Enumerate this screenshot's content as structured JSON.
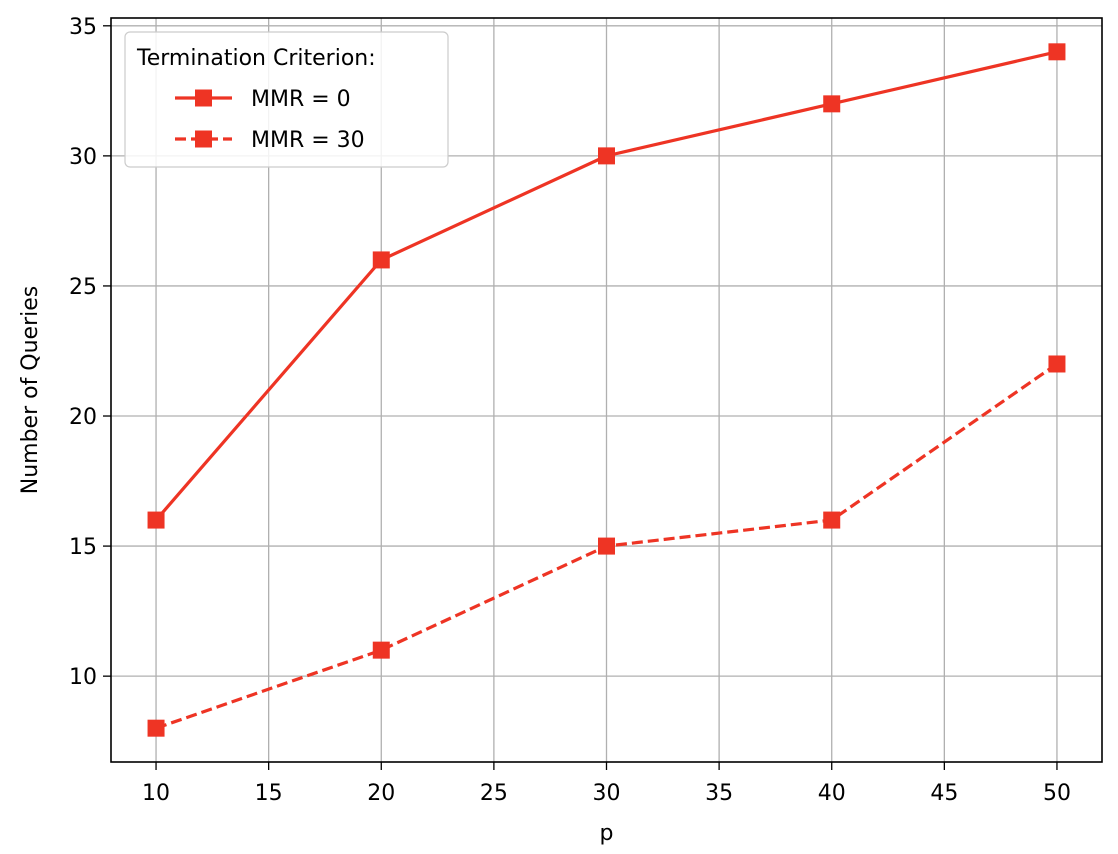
{
  "chart_data": {
    "type": "line",
    "title": "",
    "xlabel": "p",
    "ylabel": "Number of Queries",
    "x": [
      10,
      20,
      30,
      40,
      50
    ],
    "series": [
      {
        "name": "MMR = 0",
        "values": [
          16,
          26,
          30,
          32,
          34
        ],
        "line_style": "solid",
        "marker": "square",
        "color": "#EE3424"
      },
      {
        "name": "MMR = 30",
        "values": [
          8,
          11,
          15,
          16,
          22
        ],
        "line_style": "dashed",
        "marker": "square",
        "color": "#EE3424"
      }
    ],
    "xlim": [
      8,
      52
    ],
    "ylim": [
      6.7,
      35.3
    ],
    "xticks": [
      "10",
      "15",
      "20",
      "25",
      "30",
      "35",
      "40",
      "45",
      "50"
    ],
    "yticks": [
      "10",
      "15",
      "20",
      "25",
      "30",
      "35"
    ],
    "grid": true,
    "legend": {
      "title": "Termination Criterion:",
      "placement": "upper-left"
    }
  }
}
